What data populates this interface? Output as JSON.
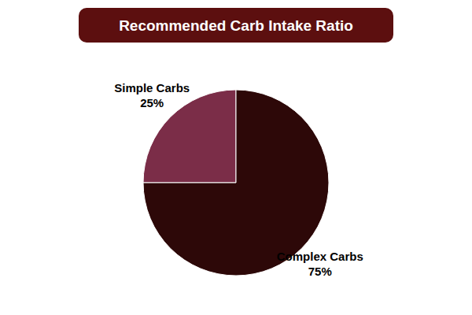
{
  "chart_data": {
    "type": "pie",
    "title": "Recommended Carb Intake Ratio",
    "categories": [
      "Simple Carbs",
      "Complex Carbs"
    ],
    "values": [
      25,
      75
    ],
    "value_labels": [
      "25%",
      "75%"
    ],
    "colors": [
      "#7B2D48",
      "#2D0808"
    ],
    "data_labels": true
  }
}
